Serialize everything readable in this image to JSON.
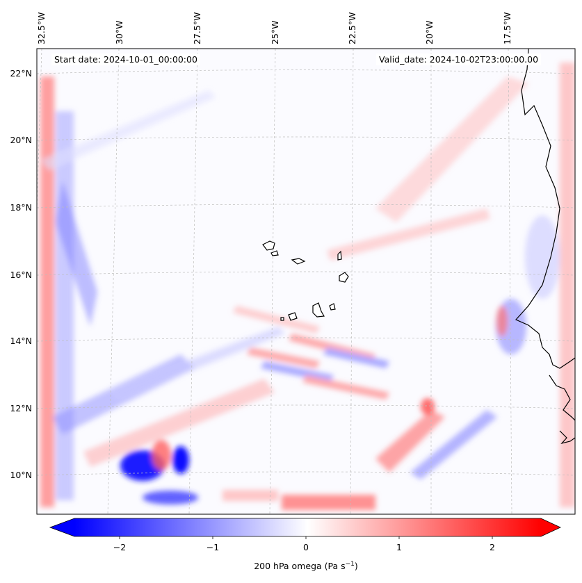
{
  "header": {
    "start_date": "Start date: 2024-10-01_00:00:00",
    "valid_date": "Valid_date: 2024-10-02T23:00:00.00"
  },
  "map": {
    "lon_labels": [
      "32.5°W",
      "30°W",
      "27.5°W",
      "25°W",
      "22.5°W",
      "20°W",
      "17.5°W"
    ],
    "lat_labels": [
      "22°N",
      "20°N",
      "18°N",
      "16°N",
      "14°N",
      "12°N",
      "10°N"
    ],
    "field": "200 hPa omega",
    "colormap": "bwr",
    "colors": {
      "negative": "#0000ff",
      "zero": "#ffffff",
      "positive": "#ff0000",
      "coast": "#000000"
    }
  },
  "colorbar": {
    "tick_labels": [
      "−2",
      "−1",
      "0",
      "1",
      "2"
    ],
    "range": [
      -2.6,
      2.6
    ],
    "extend": "both",
    "label_prefix": "200 hPa omega (Pa s",
    "label_exp": "−1",
    "label_suffix": ")"
  }
}
